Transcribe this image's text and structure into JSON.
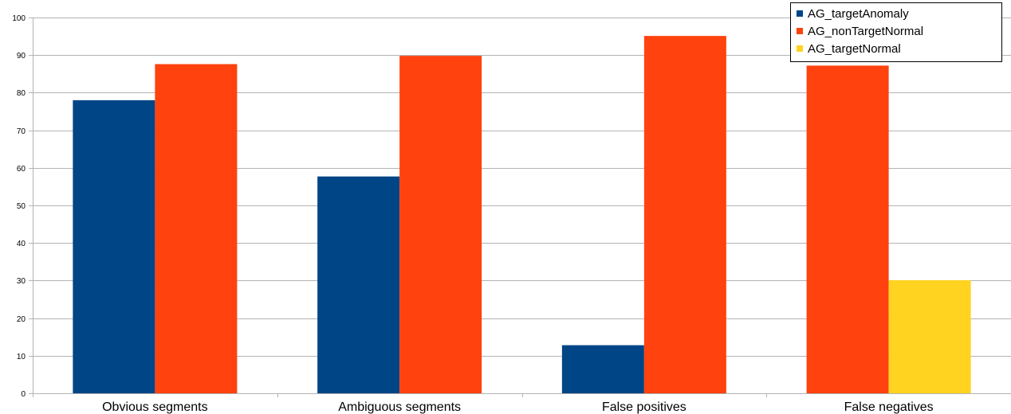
{
  "chart_data": {
    "type": "bar",
    "categories": [
      "Obvious segments",
      "Ambiguous segments",
      "False positives",
      "False negatives"
    ],
    "series": [
      {
        "name": "AG_targetAnomaly",
        "color": "#004586",
        "values": [
          78,
          57.7,
          12.8,
          null
        ]
      },
      {
        "name": "AG_nonTargetNormal",
        "color": "#ff420e",
        "values": [
          87.6,
          89.8,
          95.1,
          87.2
        ]
      },
      {
        "name": "AG_targetNormal",
        "color": "#ffd320",
        "values": [
          null,
          null,
          null,
          30.1
        ]
      }
    ],
    "ylim": [
      0,
      100
    ],
    "yticks": [
      0,
      10,
      20,
      30,
      40,
      50,
      60,
      70,
      80,
      90,
      100
    ],
    "grid": true,
    "legend_position": "top-right"
  }
}
